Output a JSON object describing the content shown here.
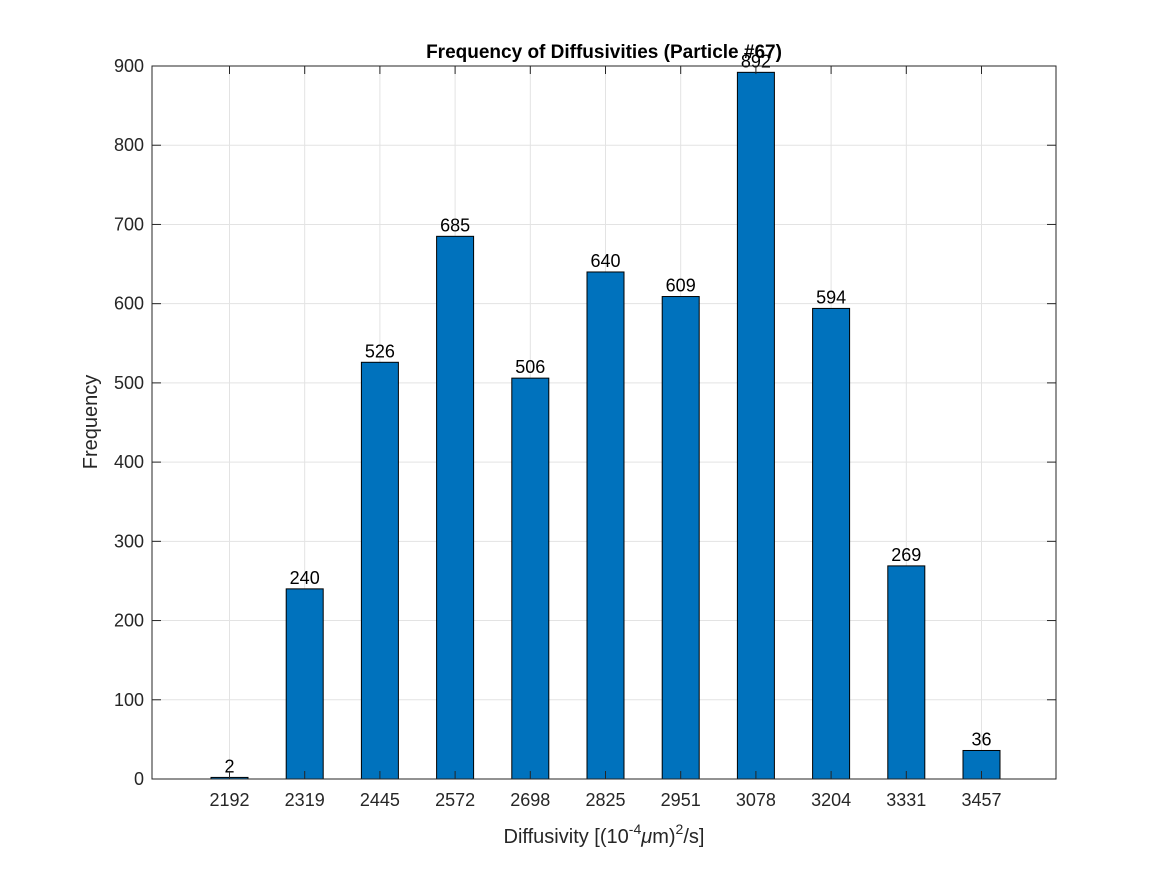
{
  "chart_data": {
    "type": "bar",
    "title": "Frequency of Diffusivities (Particle #67)",
    "xlabel": {
      "prefix": "Diffusivity [(10",
      "exp1": "-4",
      "mu": "μ",
      "middle": "m)",
      "exp2": "2",
      "suffix": "/s]"
    },
    "ylabel": "Frequency",
    "categories": [
      "2192",
      "2319",
      "2445",
      "2572",
      "2698",
      "2825",
      "2951",
      "3078",
      "3204",
      "3331",
      "3457"
    ],
    "values": [
      2,
      240,
      526,
      685,
      506,
      640,
      609,
      892,
      594,
      269,
      36
    ],
    "ylim": [
      0,
      900
    ],
    "yticks": [
      0,
      100,
      200,
      300,
      400,
      500,
      600,
      700,
      800,
      900
    ],
    "grid": true,
    "bar_color": "#0072BD",
    "edge_color": "#000000"
  }
}
